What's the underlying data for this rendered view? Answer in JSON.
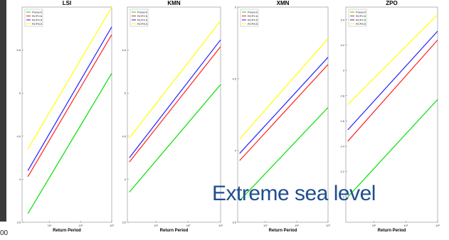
{
  "overlay_text": "Extreme sea level",
  "edge_label": "00",
  "colors": {
    "Present": "#00e000",
    "RCP2.6": "#ff2020",
    "RCP4.5": "#2020ff",
    "RCP8.5": "#ffff00"
  },
  "chart_data": [
    {
      "type": "line",
      "title": "LSI",
      "xlabel": "Return Period",
      "ylabel": "",
      "xscale": "log",
      "xlim": [
        1.3,
        1000
      ],
      "ylim": [
        3.5,
        6.0
      ],
      "xticks": [
        10,
        100,
        1000
      ],
      "xtick_labels": [
        "10¹",
        "10²",
        "10³"
      ],
      "yticks": [
        3.5,
        4,
        4.5,
        5,
        5.5
      ],
      "ytick_labels": [
        "3.5",
        "4",
        "4.5",
        "5",
        "5.5"
      ],
      "legend": {
        "location": "top-left",
        "entries": [
          "Present",
          "RCP2.6",
          "RCP4.5",
          "RCP8.5"
        ]
      },
      "grid": false,
      "series": [
        {
          "name": "Present",
          "x": [
            2,
            1000
          ],
          "y": [
            3.6,
            5.23
          ]
        },
        {
          "name": "RCP2.6",
          "x": [
            2,
            1000
          ],
          "y": [
            4.03,
            5.68
          ]
        },
        {
          "name": "RCP4.5",
          "x": [
            2,
            1000
          ],
          "y": [
            4.1,
            5.77
          ]
        },
        {
          "name": "RCP8.5",
          "x": [
            2,
            1000
          ],
          "y": [
            4.35,
            6.0
          ]
        }
      ]
    },
    {
      "type": "line",
      "title": "KMN",
      "xlabel": "Return Period",
      "ylabel": "",
      "xscale": "log",
      "xlim": [
        1.3,
        1000
      ],
      "ylim": [
        3.5,
        6.0
      ],
      "xticks": [
        10,
        100,
        1000
      ],
      "xtick_labels": [
        "10¹",
        "10²",
        "10³"
      ],
      "yticks": [
        3.5,
        4,
        4.5,
        5,
        5.5
      ],
      "ytick_labels": [
        "3.5",
        "4",
        "4.5",
        "5",
        "5.5"
      ],
      "legend": {
        "location": "top-left",
        "entries": [
          "Present",
          "RCP2.6",
          "RCP4.5",
          "RCP8.5"
        ]
      },
      "grid": false,
      "series": [
        {
          "name": "Present",
          "x": [
            1.5,
            1000
          ],
          "y": [
            3.85,
            5.1
          ]
        },
        {
          "name": "RCP2.6",
          "x": [
            1.5,
            1000
          ],
          "y": [
            4.2,
            5.54
          ]
        },
        {
          "name": "RCP4.5",
          "x": [
            1.5,
            1000
          ],
          "y": [
            4.25,
            5.62
          ]
        },
        {
          "name": "RCP8.5",
          "x": [
            1.5,
            1000
          ],
          "y": [
            4.48,
            5.84
          ]
        }
      ]
    },
    {
      "type": "line",
      "title": "XMN",
      "xlabel": "Return Period",
      "ylabel": "",
      "xscale": "log",
      "xlim": [
        1.3,
        1000
      ],
      "ylim": [
        3.5,
        5.0
      ],
      "xticks": [
        10,
        100,
        1000
      ],
      "xtick_labels": [
        "10¹",
        "10²",
        "10³"
      ],
      "yticks": [
        3.5,
        4,
        4.5,
        5
      ],
      "ytick_labels": [
        "3.5",
        "4",
        "4.5",
        "5"
      ],
      "legend": {
        "location": "top-left",
        "entries": [
          "Present",
          "RCP2.6",
          "RCP4.5",
          "RCP8.5"
        ]
      },
      "grid": false,
      "series": [
        {
          "name": "Present",
          "x": [
            1.5,
            1000
          ],
          "y": [
            3.65,
            4.3
          ]
        },
        {
          "name": "RCP2.6",
          "x": [
            1.5,
            1000
          ],
          "y": [
            3.93,
            4.6
          ]
        },
        {
          "name": "RCP4.5",
          "x": [
            1.5,
            1000
          ],
          "y": [
            3.98,
            4.65
          ]
        },
        {
          "name": "RCP8.5",
          "x": [
            1.5,
            1000
          ],
          "y": [
            4.08,
            4.78
          ]
        }
      ]
    },
    {
      "type": "line",
      "title": "ZPO",
      "xlabel": "Return Period",
      "ylabel": "",
      "xscale": "log",
      "xlim": [
        1.3,
        1000
      ],
      "ylim": [
        1.8,
        3.5
      ],
      "xticks": [
        10,
        100,
        1000
      ],
      "xtick_labels": [
        "10¹",
        "10²",
        "10³"
      ],
      "yticks": [
        2,
        2.2,
        2.4,
        2.6,
        2.8,
        3,
        3.2,
        3.4
      ],
      "ytick_labels": [
        "2",
        "2.2",
        "2.4",
        "2.6",
        "2.8",
        "3",
        "3.2",
        "3.4"
      ],
      "legend": {
        "location": "top-left",
        "entries": [
          "Present",
          "RCP2.6",
          "RCP4.5",
          "RCP8.5"
        ]
      },
      "grid": false,
      "series": [
        {
          "name": "Present",
          "x": [
            1.5,
            1000
          ],
          "y": [
            2.0,
            2.77
          ]
        },
        {
          "name": "RCP2.6",
          "x": [
            1.5,
            1000
          ],
          "y": [
            2.44,
            3.24
          ]
        },
        {
          "name": "RCP4.5",
          "x": [
            1.5,
            1000
          ],
          "y": [
            2.53,
            3.31
          ]
        },
        {
          "name": "RCP8.5",
          "x": [
            1.5,
            1000
          ],
          "y": [
            2.73,
            3.44
          ]
        }
      ]
    }
  ]
}
